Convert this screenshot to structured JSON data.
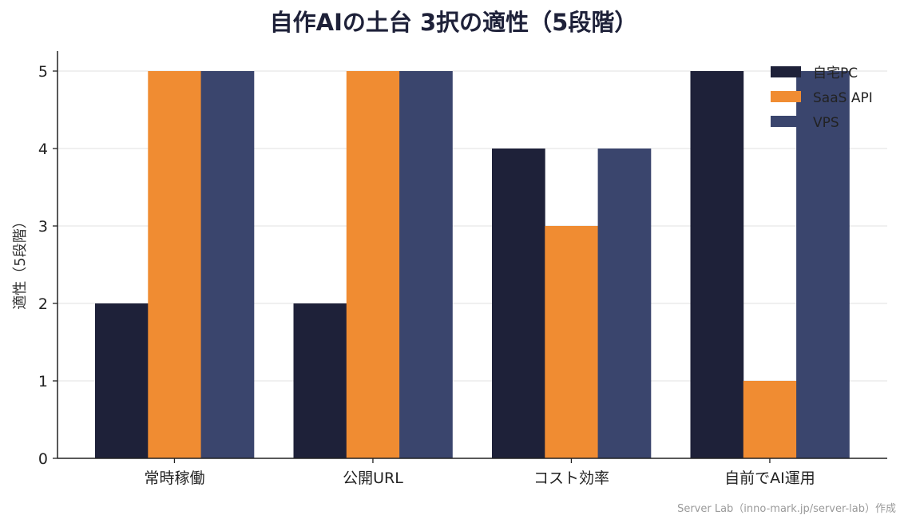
{
  "chart_data": {
    "type": "bar",
    "title": "自作AIの土台 3択の適性（5段階）",
    "xlabel": "",
    "ylabel": "適性（5段階）",
    "categories": [
      "常時稼働",
      "公開URL",
      "コスト効率",
      "自前でAI運用"
    ],
    "series": [
      {
        "name": "自宅PC",
        "color": "#1e2139",
        "values": [
          2,
          2,
          4,
          5
        ]
      },
      {
        "name": "SaaS API",
        "color": "#f08c32",
        "values": [
          5,
          5,
          3,
          1
        ]
      },
      {
        "name": "VPS",
        "color": "#3a456d",
        "values": [
          5,
          5,
          4,
          5
        ]
      }
    ],
    "ylim": [
      0,
      5.25
    ],
    "yticks": [
      0,
      1,
      2,
      3,
      4,
      5
    ],
    "grid": "horizontal",
    "legend_position": "top-right",
    "credit": "Server Lab（inno-mark.jp/server-lab）作成"
  }
}
